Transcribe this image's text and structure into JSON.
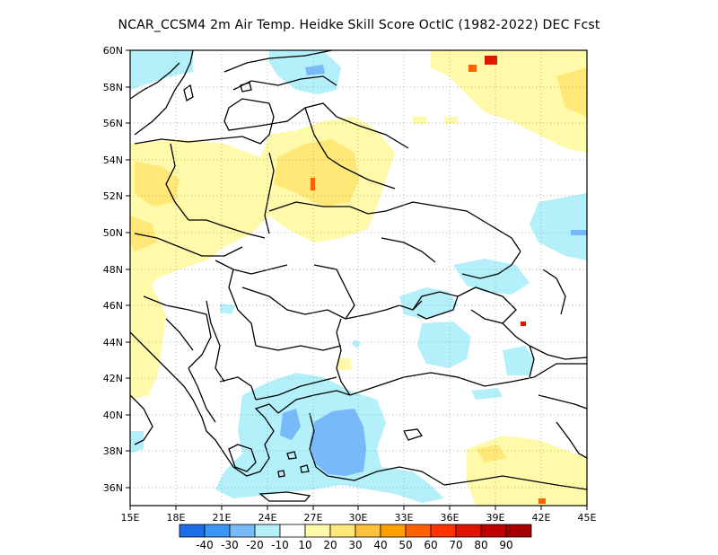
{
  "title": "NCAR_CCSM4  2m Air Temp. Heidke Skill Score OctIC (1982-2022) DEC Fcst",
  "map": {
    "lon_range": [
      15,
      45
    ],
    "lat_range": [
      35,
      60
    ],
    "x_ticks": [
      "15E",
      "18E",
      "21E",
      "24E",
      "27E",
      "30E",
      "33E",
      "36E",
      "39E",
      "42E",
      "45E"
    ],
    "y_ticks": [
      "36N",
      "38N",
      "40N",
      "42N",
      "44N",
      "46N",
      "48N",
      "50N",
      "52N",
      "54N",
      "56N",
      "58N",
      "60N"
    ],
    "grid": "dotted"
  },
  "colorbar": {
    "labels": [
      "-40",
      "-30",
      "-20",
      "-10",
      "10",
      "20",
      "30",
      "40",
      "50",
      "60",
      "70",
      "80",
      "90"
    ],
    "colors": [
      "#1e6eeb",
      "#3c96f5",
      "#78b9fa",
      "#b4f0fa",
      "#ffffff",
      "#fffaaa",
      "#ffe878",
      "#ffc03c",
      "#ffa000",
      "#ff6000",
      "#ff3200",
      "#e11400",
      "#c00000",
      "#a50000"
    ]
  },
  "anomaly_colors": {
    "light_blue": "#b4f0fa",
    "mid_blue": "#78b9fa",
    "blue": "#3c96f5",
    "light_yellow": "#fffaaa",
    "yellow": "#ffe878",
    "orange": "#ffc03c",
    "deep_orange": "#ff6000",
    "red": "#e11400"
  }
}
